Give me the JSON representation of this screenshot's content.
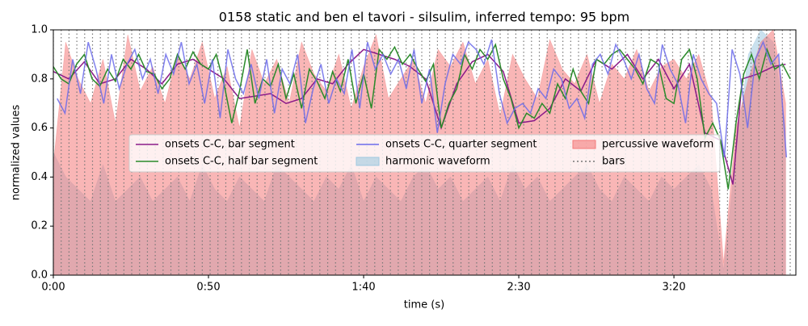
{
  "chart_data": {
    "type": "line",
    "title": "0158 static and ben el tavori - silsulim, inferred tempo: 95 bpm",
    "xlabel": "time (s)",
    "ylabel": "normalized values",
    "xlim": [
      0,
      239.3
    ],
    "ylim": [
      0,
      1
    ],
    "xticks": [
      {
        "value": 0,
        "label": "0:00"
      },
      {
        "value": 50,
        "label": "0:50"
      },
      {
        "value": 100,
        "label": "1:40"
      },
      {
        "value": 150,
        "label": "2:30"
      },
      {
        "value": 200,
        "label": "3:20"
      }
    ],
    "yticks": [
      {
        "value": 0,
        "label": "0.0"
      },
      0.2,
      0.4,
      0.6,
      0.8,
      {
        "value": 1,
        "label": "1.0"
      }
    ],
    "legend": "center",
    "series": [
      {
        "name": "onsets C-C, bar segment",
        "style": "line",
        "color": "#8b1a89",
        "x": [
          0,
          5,
          10,
          15,
          20,
          25,
          30,
          35,
          40,
          45,
          50,
          55,
          60,
          65,
          70,
          75,
          80,
          85,
          90,
          95,
          100,
          105,
          110,
          115,
          120,
          125,
          130,
          135,
          140,
          145,
          150,
          155,
          160,
          165,
          170,
          175,
          180,
          185,
          190,
          195,
          200,
          205,
          210,
          215,
          219,
          222,
          227,
          232,
          236
        ],
        "values": [
          0.83,
          0.8,
          0.87,
          0.78,
          0.8,
          0.88,
          0.84,
          0.78,
          0.86,
          0.88,
          0.84,
          0.8,
          0.72,
          0.73,
          0.74,
          0.7,
          0.72,
          0.8,
          0.78,
          0.86,
          0.92,
          0.9,
          0.88,
          0.85,
          0.8,
          0.6,
          0.78,
          0.87,
          0.9,
          0.83,
          0.62,
          0.63,
          0.68,
          0.8,
          0.75,
          0.88,
          0.84,
          0.9,
          0.8,
          0.88,
          0.76,
          0.86,
          0.58,
          0.55,
          0.37,
          0.8,
          0.82,
          0.85,
          0.86
        ]
      },
      {
        "name": "onsets C-C, half bar segment",
        "style": "line",
        "color": "#2a8a2a",
        "x": [
          0,
          2.5,
          5,
          7.5,
          10,
          12.5,
          15,
          17.5,
          20,
          22.5,
          25,
          27.5,
          30,
          32.5,
          35,
          37.5,
          40,
          42.5,
          45,
          47.5,
          50,
          52.5,
          55,
          57.5,
          60,
          62.5,
          65,
          67.5,
          70,
          72.5,
          75,
          77.5,
          80,
          82.5,
          85,
          87.5,
          90,
          92.5,
          95,
          97.5,
          100,
          102.5,
          105,
          107.5,
          110,
          112.5,
          115,
          117.5,
          120,
          122.5,
          125,
          127.5,
          130,
          132.5,
          135,
          137.5,
          140,
          142.5,
          145,
          147.5,
          150,
          152.5,
          155,
          157.5,
          160,
          162.5,
          165,
          167.5,
          170,
          172.5,
          175,
          177.5,
          180,
          182.5,
          185,
          187.5,
          190,
          192.5,
          195,
          197.5,
          200,
          202.5,
          205,
          207.5,
          210,
          212.5,
          215,
          217.5,
          220,
          222.5,
          225,
          227.5,
          230,
          232.5,
          235,
          237.5
        ],
        "values": [
          0.85,
          0.8,
          0.78,
          0.86,
          0.9,
          0.8,
          0.77,
          0.84,
          0.79,
          0.88,
          0.84,
          0.9,
          0.83,
          0.82,
          0.76,
          0.8,
          0.9,
          0.84,
          0.91,
          0.86,
          0.84,
          0.9,
          0.78,
          0.62,
          0.75,
          0.92,
          0.7,
          0.8,
          0.77,
          0.86,
          0.72,
          0.82,
          0.68,
          0.84,
          0.79,
          0.72,
          0.83,
          0.75,
          0.88,
          0.7,
          0.82,
          0.68,
          0.92,
          0.88,
          0.93,
          0.86,
          0.9,
          0.84,
          0.79,
          0.86,
          0.6,
          0.7,
          0.76,
          0.9,
          0.84,
          0.92,
          0.88,
          0.94,
          0.8,
          0.72,
          0.6,
          0.66,
          0.64,
          0.7,
          0.66,
          0.78,
          0.72,
          0.84,
          0.75,
          0.7,
          0.88,
          0.86,
          0.9,
          0.92,
          0.88,
          0.84,
          0.78,
          0.88,
          0.86,
          0.72,
          0.7,
          0.88,
          0.92,
          0.8,
          0.56,
          0.62,
          0.55,
          0.35,
          0.62,
          0.82,
          0.9,
          0.8,
          0.92,
          0.84,
          0.86,
          0.8
        ]
      },
      {
        "name": "onsets C-C, quarter segment",
        "style": "line",
        "color": "#6b6bea",
        "x": [
          1.25,
          3.75,
          6.25,
          8.75,
          11.25,
          13.75,
          16.25,
          18.75,
          21.25,
          23.75,
          26.25,
          28.75,
          31.25,
          33.75,
          36.25,
          38.75,
          41.25,
          43.75,
          46.25,
          48.75,
          51.25,
          53.75,
          56.25,
          58.75,
          61.25,
          63.75,
          66.25,
          68.75,
          71.25,
          73.75,
          76.25,
          78.75,
          81.25,
          83.75,
          86.25,
          88.75,
          91.25,
          93.75,
          96.25,
          98.75,
          101.25,
          103.75,
          106.25,
          108.75,
          111.25,
          113.75,
          116.25,
          118.75,
          121.25,
          123.75,
          126.25,
          128.75,
          131.25,
          133.75,
          136.25,
          138.75,
          141.25,
          143.75,
          146.25,
          148.75,
          151.25,
          153.75,
          156.25,
          158.75,
          161.25,
          163.75,
          166.25,
          168.75,
          171.25,
          173.75,
          176.25,
          178.75,
          181.25,
          183.75,
          186.25,
          188.75,
          191.25,
          193.75,
          196.25,
          198.75,
          201.25,
          203.75,
          206.25,
          208.75,
          211.25,
          213.75,
          216.25,
          218.75,
          221.25,
          223.75,
          226.25,
          228.75,
          231.25,
          233.75,
          236.25
        ],
        "values": [
          0.72,
          0.66,
          0.88,
          0.74,
          0.95,
          0.84,
          0.7,
          0.9,
          0.76,
          0.86,
          0.92,
          0.8,
          0.88,
          0.74,
          0.9,
          0.82,
          0.95,
          0.78,
          0.86,
          0.7,
          0.88,
          0.64,
          0.92,
          0.8,
          0.74,
          0.86,
          0.72,
          0.88,
          0.66,
          0.84,
          0.78,
          0.9,
          0.62,
          0.76,
          0.86,
          0.7,
          0.8,
          0.74,
          0.92,
          0.68,
          0.95,
          0.84,
          0.9,
          0.82,
          0.88,
          0.76,
          0.92,
          0.7,
          0.84,
          0.58,
          0.78,
          0.9,
          0.86,
          0.95,
          0.92,
          0.86,
          0.96,
          0.74,
          0.62,
          0.68,
          0.7,
          0.66,
          0.76,
          0.72,
          0.84,
          0.8,
          0.68,
          0.72,
          0.64,
          0.86,
          0.9,
          0.82,
          0.94,
          0.88,
          0.8,
          0.9,
          0.76,
          0.7,
          0.94,
          0.84,
          0.78,
          0.62,
          0.9,
          0.8,
          0.74,
          0.7,
          0.48,
          0.92,
          0.82,
          0.6,
          0.88,
          0.95,
          0.86,
          0.9,
          0.48
        ]
      },
      {
        "name": "harmonic waveform",
        "style": "area",
        "color": "#9ec9e0",
        "x": [
          0,
          4,
          8,
          12,
          16,
          20,
          24,
          28,
          32,
          36,
          40,
          44,
          48,
          52,
          56,
          60,
          64,
          68,
          72,
          76,
          80,
          84,
          88,
          92,
          96,
          100,
          104,
          108,
          112,
          116,
          120,
          124,
          128,
          132,
          136,
          140,
          144,
          148,
          152,
          156,
          160,
          164,
          168,
          172,
          176,
          180,
          184,
          188,
          192,
          196,
          200,
          204,
          208,
          212,
          216,
          220,
          224,
          228,
          232,
          236
        ],
        "values": [
          0.5,
          0.4,
          0.35,
          0.3,
          0.45,
          0.3,
          0.35,
          0.4,
          0.3,
          0.35,
          0.4,
          0.3,
          0.45,
          0.35,
          0.3,
          0.4,
          0.35,
          0.3,
          0.45,
          0.4,
          0.35,
          0.3,
          0.4,
          0.35,
          0.45,
          0.3,
          0.4,
          0.35,
          0.3,
          0.4,
          0.45,
          0.35,
          0.4,
          0.3,
          0.35,
          0.4,
          0.3,
          0.45,
          0.35,
          0.4,
          0.3,
          0.35,
          0.4,
          0.45,
          0.35,
          0.3,
          0.4,
          0.35,
          0.3,
          0.4,
          0.35,
          0.4,
          0.45,
          0.35,
          0.02,
          0.5,
          0.9,
          1.0,
          0.95,
          0.6
        ]
      },
      {
        "name": "percussive waveform",
        "style": "area",
        "color": "#f47a7a",
        "x": [
          0,
          4,
          8,
          12,
          16,
          20,
          24,
          28,
          32,
          36,
          40,
          44,
          48,
          52,
          56,
          60,
          64,
          68,
          72,
          76,
          80,
          84,
          88,
          92,
          96,
          100,
          104,
          108,
          112,
          116,
          120,
          124,
          128,
          132,
          136,
          140,
          144,
          148,
          152,
          156,
          160,
          164,
          168,
          172,
          176,
          180,
          184,
          188,
          192,
          196,
          200,
          204,
          208,
          212,
          216,
          220,
          224,
          228,
          232,
          236
        ],
        "values": [
          0.45,
          0.95,
          0.8,
          0.7,
          0.88,
          0.62,
          0.98,
          0.75,
          0.85,
          0.7,
          0.9,
          0.8,
          0.95,
          0.72,
          0.85,
          0.6,
          0.92,
          0.78,
          0.88,
          0.7,
          0.95,
          0.82,
          0.75,
          0.9,
          0.68,
          0.85,
          0.98,
          0.72,
          0.8,
          0.88,
          0.7,
          0.92,
          0.85,
          0.95,
          0.78,
          0.88,
          0.65,
          0.9,
          0.8,
          0.72,
          0.96,
          0.84,
          0.78,
          0.9,
          0.7,
          0.86,
          0.8,
          0.92,
          0.75,
          0.85,
          0.88,
          0.8,
          0.9,
          0.72,
          0.05,
          0.6,
          0.8,
          0.95,
          1.0,
          0.7
        ]
      },
      {
        "name": "bars",
        "style": "vlines",
        "color": "#777777",
        "x": [
          0,
          2.53,
          5.05,
          7.58,
          10.1,
          12.63,
          15.16,
          17.68,
          20.21,
          22.74,
          25.26,
          27.79,
          30.32,
          32.84,
          35.37,
          37.89,
          40.42,
          42.95,
          45.47,
          48,
          50.53,
          53.05,
          55.58,
          58.1,
          60.63,
          63.16,
          65.68,
          68.21,
          70.74,
          73.26,
          75.79,
          78.32,
          80.84,
          83.37,
          85.89,
          88.42,
          90.95,
          93.47,
          96,
          98.53,
          101.05,
          103.58,
          106.1,
          108.63,
          111.16,
          113.68,
          116.21,
          118.74,
          121.26,
          123.79,
          126.32,
          128.84,
          131.37,
          133.89,
          136.42,
          138.95,
          141.47,
          144,
          146.53,
          149.05,
          151.58,
          154.1,
          156.63,
          159.16,
          161.68,
          164.21,
          166.74,
          169.26,
          171.79,
          174.32,
          176.84,
          179.37,
          181.89,
          184.42,
          186.95,
          189.47,
          192,
          194.53,
          197.05,
          199.58,
          202.1,
          204.63,
          207.16,
          209.68,
          212.21,
          214.74,
          217.26,
          219.79,
          222.32,
          224.84,
          227.37,
          229.89,
          232.42,
          234.95,
          237.47
        ]
      }
    ]
  }
}
